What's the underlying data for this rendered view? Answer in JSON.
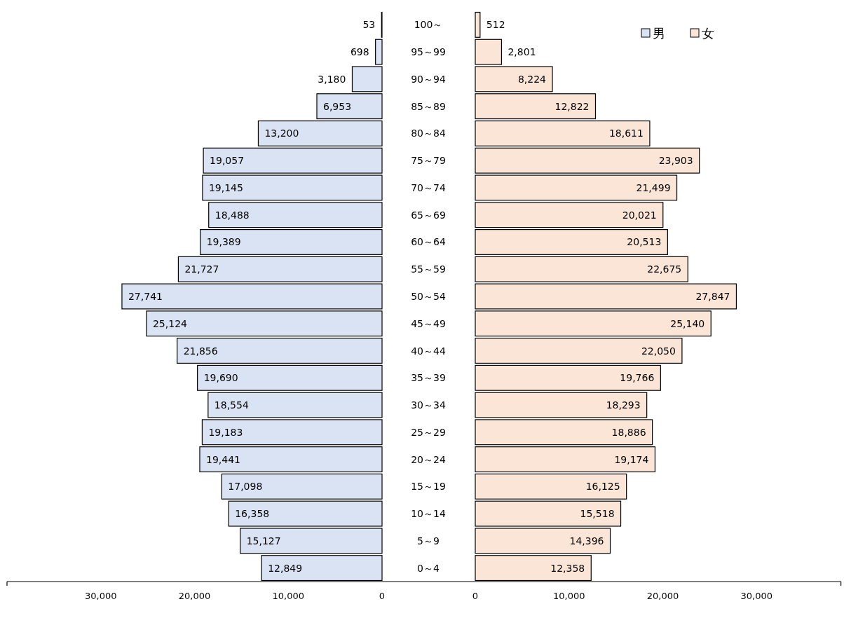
{
  "chart_data": [
    {
      "type": "bar",
      "orientation": "horizontal",
      "categories": [
        "100～",
        "95～99",
        "90～94",
        "85～89",
        "80～84",
        "75～79",
        "70～74",
        "65～69",
        "60～64",
        "55～59",
        "50～54",
        "45～49",
        "40～44",
        "35～39",
        "30～34",
        "25～29",
        "20～24",
        "15～19",
        "10～14",
        "5～9",
        "0～4"
      ],
      "series": [
        {
          "name": "男",
          "color": "#dae3f3",
          "values": [
            53,
            698,
            3180,
            6953,
            13200,
            19057,
            19145,
            18488,
            19389,
            21727,
            27741,
            25124,
            21856,
            19690,
            18554,
            19183,
            19441,
            17098,
            16358,
            15127,
            12849
          ],
          "value_labels": [
            "53",
            "698",
            "3,180",
            "6,953",
            "13,200",
            "19,057",
            "19,145",
            "18,488",
            "19,389",
            "21,727",
            "27,741",
            "25,124",
            "21,856",
            "19,690",
            "18,554",
            "19,183",
            "19,441",
            "17,098",
            "16,358",
            "15,127",
            "12,849"
          ]
        }
      ],
      "xlim": [
        40000,
        0
      ],
      "xticks": [
        {
          "value": 30000,
          "label": "30,000"
        },
        {
          "value": 20000,
          "label": "20,000"
        },
        {
          "value": 10000,
          "label": "10,000"
        },
        0
      ],
      "legend": "top right"
    },
    {
      "type": "bar",
      "orientation": "horizontal",
      "categories": [
        null,
        null,
        null,
        null,
        null,
        null,
        null,
        null,
        null,
        null,
        null,
        null,
        null,
        null,
        null,
        null,
        null,
        null,
        null,
        null,
        null
      ],
      "series": [
        {
          "name": "女",
          "color": "#fbe5d6",
          "values": [
            512,
            2801,
            8224,
            12822,
            18611,
            23903,
            21499,
            20021,
            20513,
            22675,
            27847,
            25140,
            22050,
            19766,
            18293,
            18886,
            19174,
            16125,
            15518,
            14396,
            12358
          ],
          "value_labels": [
            "512",
            "2,801",
            "8,224",
            "12,822",
            "18,611",
            "23,903",
            "21,499",
            "20,021",
            "20,513",
            "22,675",
            "27,847",
            "25,140",
            "22,050",
            "19,766",
            "18,293",
            "18,886",
            "19,174",
            "16,125",
            "15,518",
            "14,396",
            "12,358"
          ]
        }
      ],
      "xlim": [
        0,
        39000
      ],
      "xticks": [
        0,
        {
          "value": 10000,
          "label": "10,000"
        },
        {
          "value": 20000,
          "label": "20,000"
        },
        {
          "value": 30000,
          "label": "30,000"
        }
      ],
      "legend": "top right"
    }
  ]
}
